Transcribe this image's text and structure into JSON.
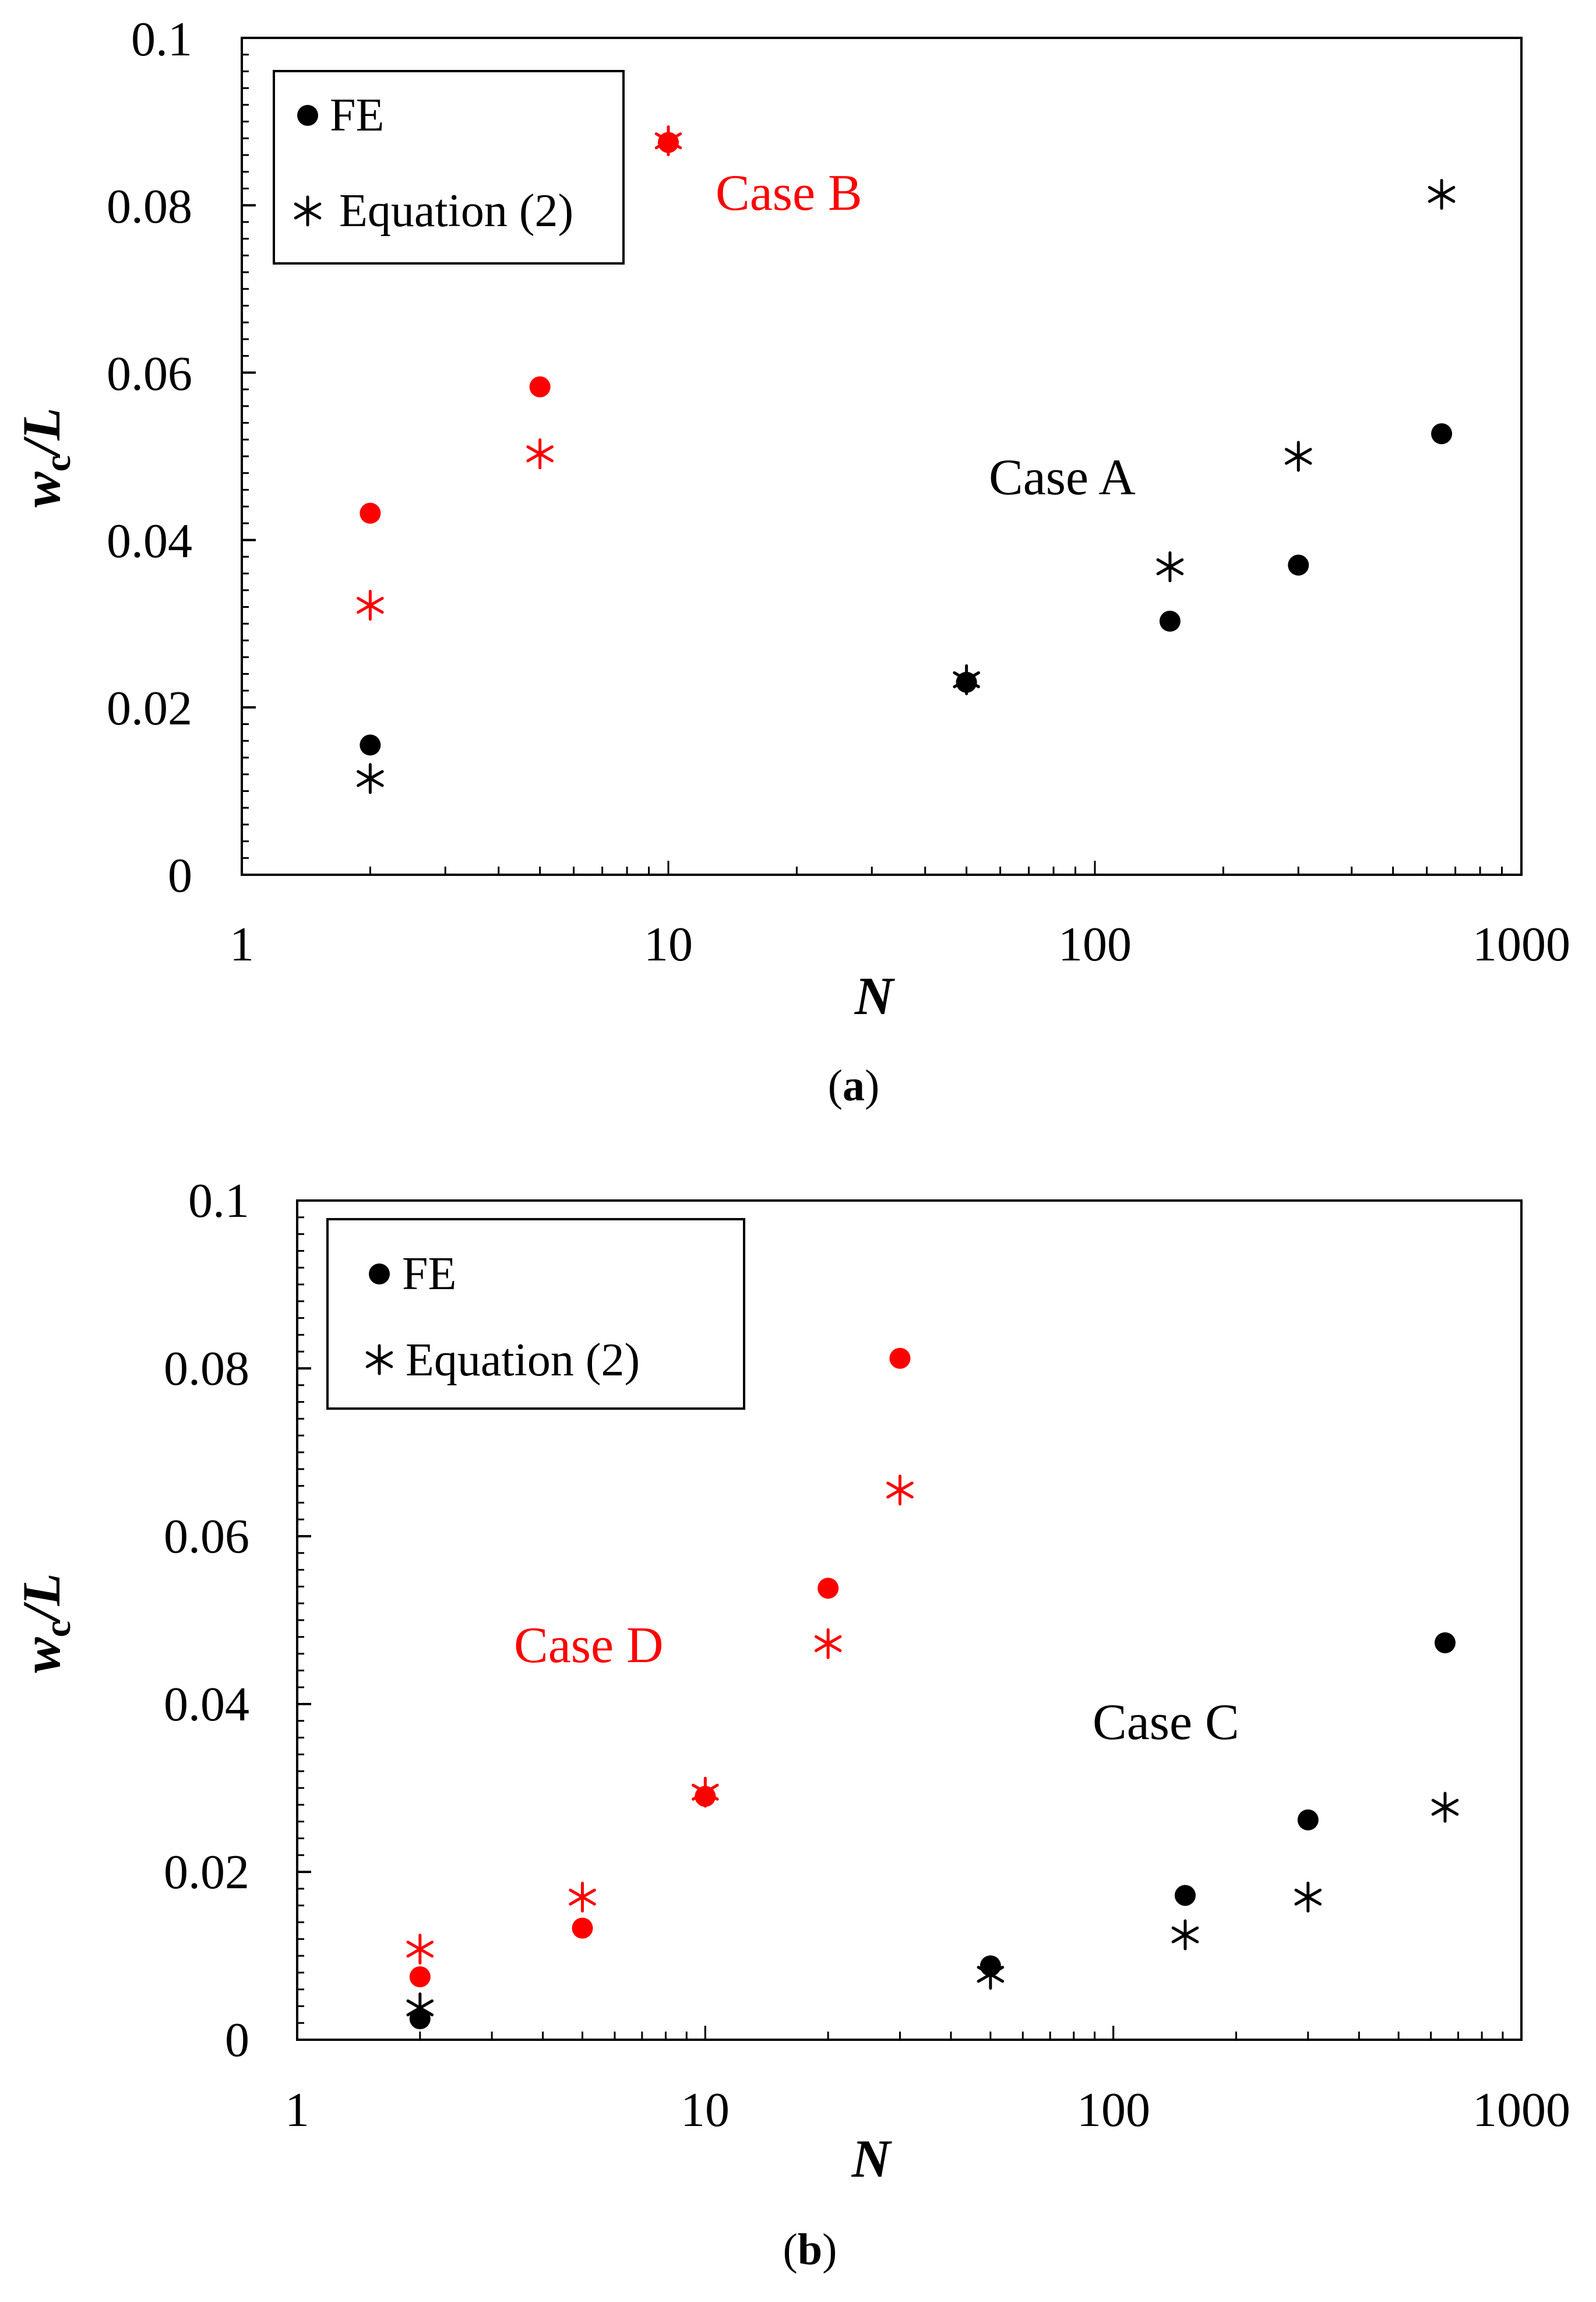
{
  "colors": {
    "black_series": "#000000",
    "red_series": "#ff0000",
    "axis": "#000000"
  },
  "legend_labels": {
    "fe": "FE",
    "equation": "Equation (2)"
  },
  "chart_data": [
    {
      "id": "a",
      "type": "scatter",
      "caption_letter": "a",
      "xlabel": "N",
      "ylabel_main": "w",
      "ylabel_sub": "c",
      "ylabel_tail": "/L",
      "xscale": "log",
      "xlim": [
        1,
        1000
      ],
      "ylim": [
        0,
        0.1
      ],
      "x_ticks": [
        1,
        10,
        100,
        1000
      ],
      "x_tick_labels": [
        "1",
        "10",
        "100",
        "1000"
      ],
      "y_ticks": [
        0,
        0.02,
        0.04,
        0.06,
        0.08,
        0.1
      ],
      "y_tick_labels": [
        "0",
        "0.02",
        "0.04",
        "0.06",
        "0.08",
        "0.1"
      ],
      "legend": {
        "placement": "top-left",
        "entries": [
          "FE",
          "Equation (2)"
        ]
      },
      "annotations": [
        {
          "text": "Case B",
          "color": "#ff0000",
          "x": 20.5,
          "y": 0.081
        },
        {
          "text": "Case A",
          "color": "#000000",
          "x": 65,
          "y": 0.0465
        }
      ],
      "series": [
        {
          "name": "FE",
          "case": "Case A",
          "marker": "dot",
          "color": "#000000",
          "points": [
            [
              2,
              0.0155
            ],
            [
              50,
              0.023
            ],
            [
              150,
              0.0303
            ],
            [
              300,
              0.037
            ],
            [
              650,
              0.0527
            ]
          ]
        },
        {
          "name": "Equation (2)",
          "case": "Case A",
          "marker": "asterisk",
          "color": "#000000",
          "points": [
            [
              2,
              0.0115
            ],
            [
              50,
              0.0233
            ],
            [
              150,
              0.0368
            ],
            [
              300,
              0.05
            ],
            [
              650,
              0.0813
            ]
          ]
        },
        {
          "name": "FE",
          "case": "Case B",
          "marker": "dot",
          "color": "#ff0000",
          "points": [
            [
              2,
              0.0432
            ],
            [
              5,
              0.0583
            ],
            [
              10,
              0.0875
            ]
          ]
        },
        {
          "name": "Equation (2)",
          "case": "Case B",
          "marker": "asterisk",
          "color": "#ff0000",
          "points": [
            [
              2,
              0.0322
            ],
            [
              5,
              0.0503
            ],
            [
              10,
              0.0877
            ]
          ]
        }
      ]
    },
    {
      "id": "b",
      "type": "scatter",
      "caption_letter": "b",
      "xlabel": "N",
      "ylabel_main": "w",
      "ylabel_sub": "c",
      "ylabel_tail": "/L",
      "xscale": "log",
      "xlim": [
        1,
        1000
      ],
      "ylim": [
        0,
        0.1
      ],
      "x_ticks": [
        1,
        10,
        100,
        1000
      ],
      "x_tick_labels": [
        "1",
        "10",
        "100",
        "1000"
      ],
      "y_ticks": [
        0,
        0.02,
        0.04,
        0.06,
        0.08,
        0.1
      ],
      "y_tick_labels": [
        "0",
        "0.02",
        "0.04",
        "0.06",
        "0.08",
        "0.1"
      ],
      "legend": {
        "placement": "top-left",
        "entries": [
          "FE",
          "Equation (2)"
        ]
      },
      "annotations": [
        {
          "text": "Case D",
          "color": "#ff0000",
          "x": 5.6,
          "y": 0.0457
        },
        {
          "text": "Case C",
          "color": "#000000",
          "x": 67,
          "y": 0.0362
        }
      ],
      "series": [
        {
          "name": "FE",
          "case": "Case C",
          "marker": "dot",
          "color": "#000000",
          "points": [
            [
              2,
              0.0025
            ],
            [
              50,
              0.0088
            ],
            [
              150,
              0.0172
            ],
            [
              300,
              0.0262
            ],
            [
              650,
              0.0473
            ]
          ]
        },
        {
          "name": "Equation (2)",
          "case": "Case C",
          "marker": "asterisk",
          "color": "#000000",
          "points": [
            [
              2,
              0.0038
            ],
            [
              50,
              0.0078
            ],
            [
              150,
              0.0125
            ],
            [
              300,
              0.017
            ],
            [
              650,
              0.0277
            ]
          ]
        },
        {
          "name": "FE",
          "case": "Case D",
          "marker": "dot",
          "color": "#ff0000",
          "points": [
            [
              2,
              0.0075
            ],
            [
              5,
              0.0133
            ],
            [
              10,
              0.029
            ],
            [
              20,
              0.0538
            ],
            [
              30,
              0.0812
            ]
          ]
        },
        {
          "name": "Equation (2)",
          "case": "Case D",
          "marker": "asterisk",
          "color": "#ff0000",
          "points": [
            [
              2,
              0.0108
            ],
            [
              5,
              0.017
            ],
            [
              10,
              0.0295
            ],
            [
              20,
              0.0472
            ],
            [
              30,
              0.0655
            ]
          ]
        }
      ]
    }
  ]
}
